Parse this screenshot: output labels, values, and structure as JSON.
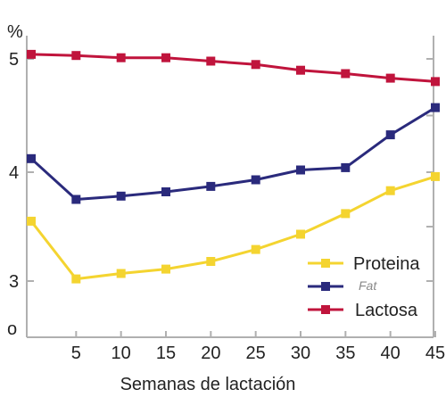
{
  "chart_data": {
    "type": "line",
    "xlabel": "Semanas de lactación",
    "ylabel": "%",
    "x_ticks": [
      "5",
      "10",
      "15",
      "20",
      "25",
      "30",
      "35",
      "40",
      "45"
    ],
    "y_ticks": [
      "3",
      "4",
      "5"
    ],
    "y_zero_label": "o",
    "xlim": [
      0,
      45
    ],
    "legend_position": "lower-right",
    "grid": false,
    "series": [
      {
        "name": "Proteina",
        "color": "#f4d430",
        "x": [
          0,
          5,
          10,
          15,
          20,
          25,
          30,
          35,
          40,
          45
        ],
        "values": [
          3.55,
          3.02,
          3.07,
          3.11,
          3.18,
          3.29,
          3.43,
          3.62,
          3.83,
          3.96
        ]
      },
      {
        "name": "Fat",
        "color": "#2a2a7c",
        "italic": true,
        "x": [
          0,
          5,
          10,
          15,
          20,
          25,
          30,
          35,
          40,
          45
        ],
        "values": [
          4.12,
          3.75,
          3.78,
          3.82,
          3.87,
          3.93,
          4.02,
          4.04,
          4.33,
          4.57
        ]
      },
      {
        "name": "Lactosa",
        "color": "#c0143c",
        "x": [
          0,
          5,
          10,
          15,
          20,
          25,
          30,
          35,
          40,
          45
        ],
        "values": [
          5.04,
          5.03,
          5.01,
          5.01,
          4.98,
          4.95,
          4.9,
          4.87,
          4.83,
          4.8
        ]
      }
    ]
  }
}
